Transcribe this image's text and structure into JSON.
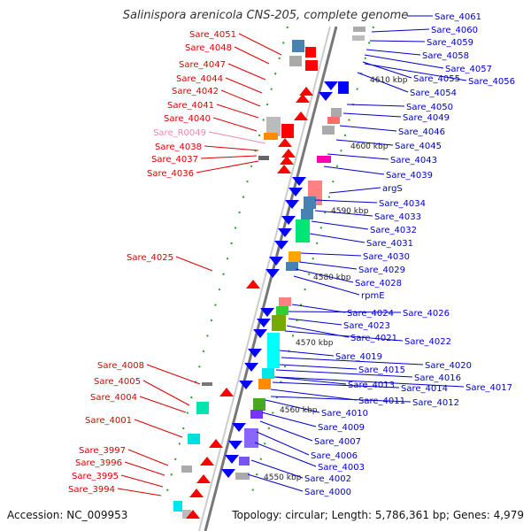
{
  "title": "Salinispora arenicola CNS-205, complete genome",
  "footer": {
    "accession": "Accession: NC_009953",
    "summary": "Topology: circular; Length: 5,786,361 bp; Genes: 4,979"
  },
  "colors": {
    "left_label": "#dd0000",
    "right_label": "#0000cc",
    "rna_label": "#ee88aa",
    "backbone": "#888888",
    "reverse_gene": "#ff0000",
    "forward_gene": "#0000ff"
  },
  "scale_labels": [
    "4610 kbp",
    "4600 kbp",
    "4590 kbp",
    "4580 kbp",
    "4570 kbp",
    "4560 kbp",
    "4550 kbp"
  ],
  "left_labels": [
    "Sare_4051",
    "Sare_4048",
    "Sare_4047",
    "Sare_4044",
    "Sare_4042",
    "Sare_4041",
    "Sare_4040",
    "Sare_R0049",
    "Sare_4038",
    "Sare_4037",
    "Sare_4036",
    "Sare_4025",
    "Sare_4008",
    "Sare_4005",
    "Sare_4004",
    "Sare_4001",
    "Sare_3997",
    "Sare_3996",
    "Sare_3995",
    "Sare_3994"
  ],
  "right_labels": [
    "Sare_4061",
    "Sare_4060",
    "Sare_4059",
    "Sare_4058",
    "Sare_4057",
    "Sare_4055",
    "Sare_4056",
    "Sare_4054",
    "Sare_4050",
    "Sare_4049",
    "Sare_4046",
    "Sare_4045",
    "Sare_4043",
    "Sare_4039",
    "argS",
    "Sare_4034",
    "Sare_4033",
    "Sare_4032",
    "Sare_4031",
    "Sare_4030",
    "Sare_4029",
    "Sare_4028",
    "rpmE",
    "Sare_4024",
    "Sare_4026",
    "Sare_4023",
    "Sare_4021",
    "Sare_4022",
    "Sare_4019",
    "Sare_4020",
    "Sare_4015",
    "Sare_4016",
    "Sare_4017",
    "Sare_4013",
    "Sare_4014",
    "Sare_4011",
    "Sare_4012",
    "Sare_4010",
    "Sare_4009",
    "Sare_4007",
    "Sare_4006",
    "Sare_4003",
    "Sare_4002",
    "Sare_4000"
  ]
}
